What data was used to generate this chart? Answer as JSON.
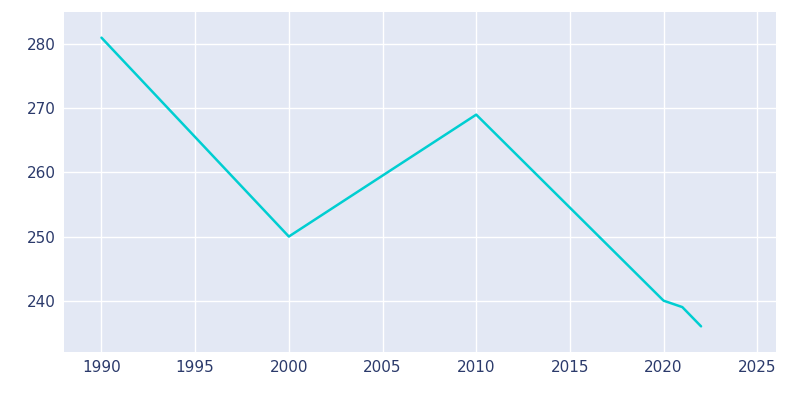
{
  "years": [
    1990,
    2000,
    2010,
    2020,
    2021,
    2022
  ],
  "population": [
    281,
    250,
    269,
    240,
    239,
    236
  ],
  "line_color": "#00CED1",
  "fig_bg_color": "#FFFFFF",
  "plot_bg_color": "#E3E8F4",
  "grid_color": "#FFFFFF",
  "tick_color": "#2B3A6B",
  "xlim": [
    1988,
    2026
  ],
  "ylim": [
    232,
    285
  ],
  "xticks": [
    1990,
    1995,
    2000,
    2005,
    2010,
    2015,
    2020,
    2025
  ],
  "yticks": [
    240,
    250,
    260,
    270,
    280
  ],
  "linewidth": 1.8,
  "tick_fontsize": 11
}
